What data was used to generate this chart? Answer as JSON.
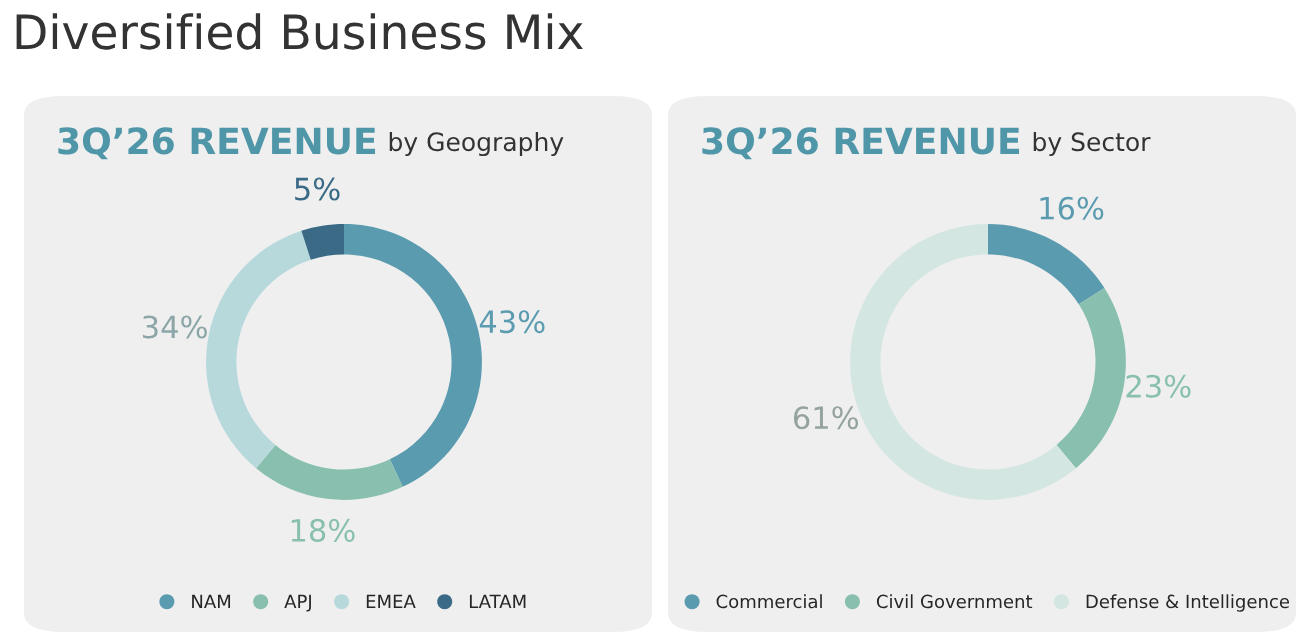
{
  "chart_data": [
    {
      "type": "donut",
      "title": "3Q’26 REVENUE",
      "subtitle": "by Geography",
      "annotations": [
        "Diversified Business Mix"
      ],
      "legend": "bottom",
      "categories": [
        "NAM",
        "APJ",
        "EMEA",
        "LATAM"
      ],
      "values": [
        43,
        18,
        34,
        5
      ],
      "colors": [
        "#5a9bb0",
        "#88bfae",
        "#b7d9dc",
        "#3a6a85"
      ],
      "value_labels": [
        "43%",
        "18%",
        "34%",
        "5%"
      ]
    },
    {
      "type": "donut",
      "title": "3Q’26 REVENUE",
      "subtitle": "by Sector",
      "legend": "bottom",
      "categories": [
        "Commercial",
        "Civil Government",
        "Defense & Intelligence"
      ],
      "values": [
        16,
        23,
        61
      ],
      "colors": [
        "#5a9bb0",
        "#88bfae",
        "#d3e6e1"
      ],
      "value_labels": [
        "16%",
        "23%",
        "61%"
      ]
    }
  ]
}
